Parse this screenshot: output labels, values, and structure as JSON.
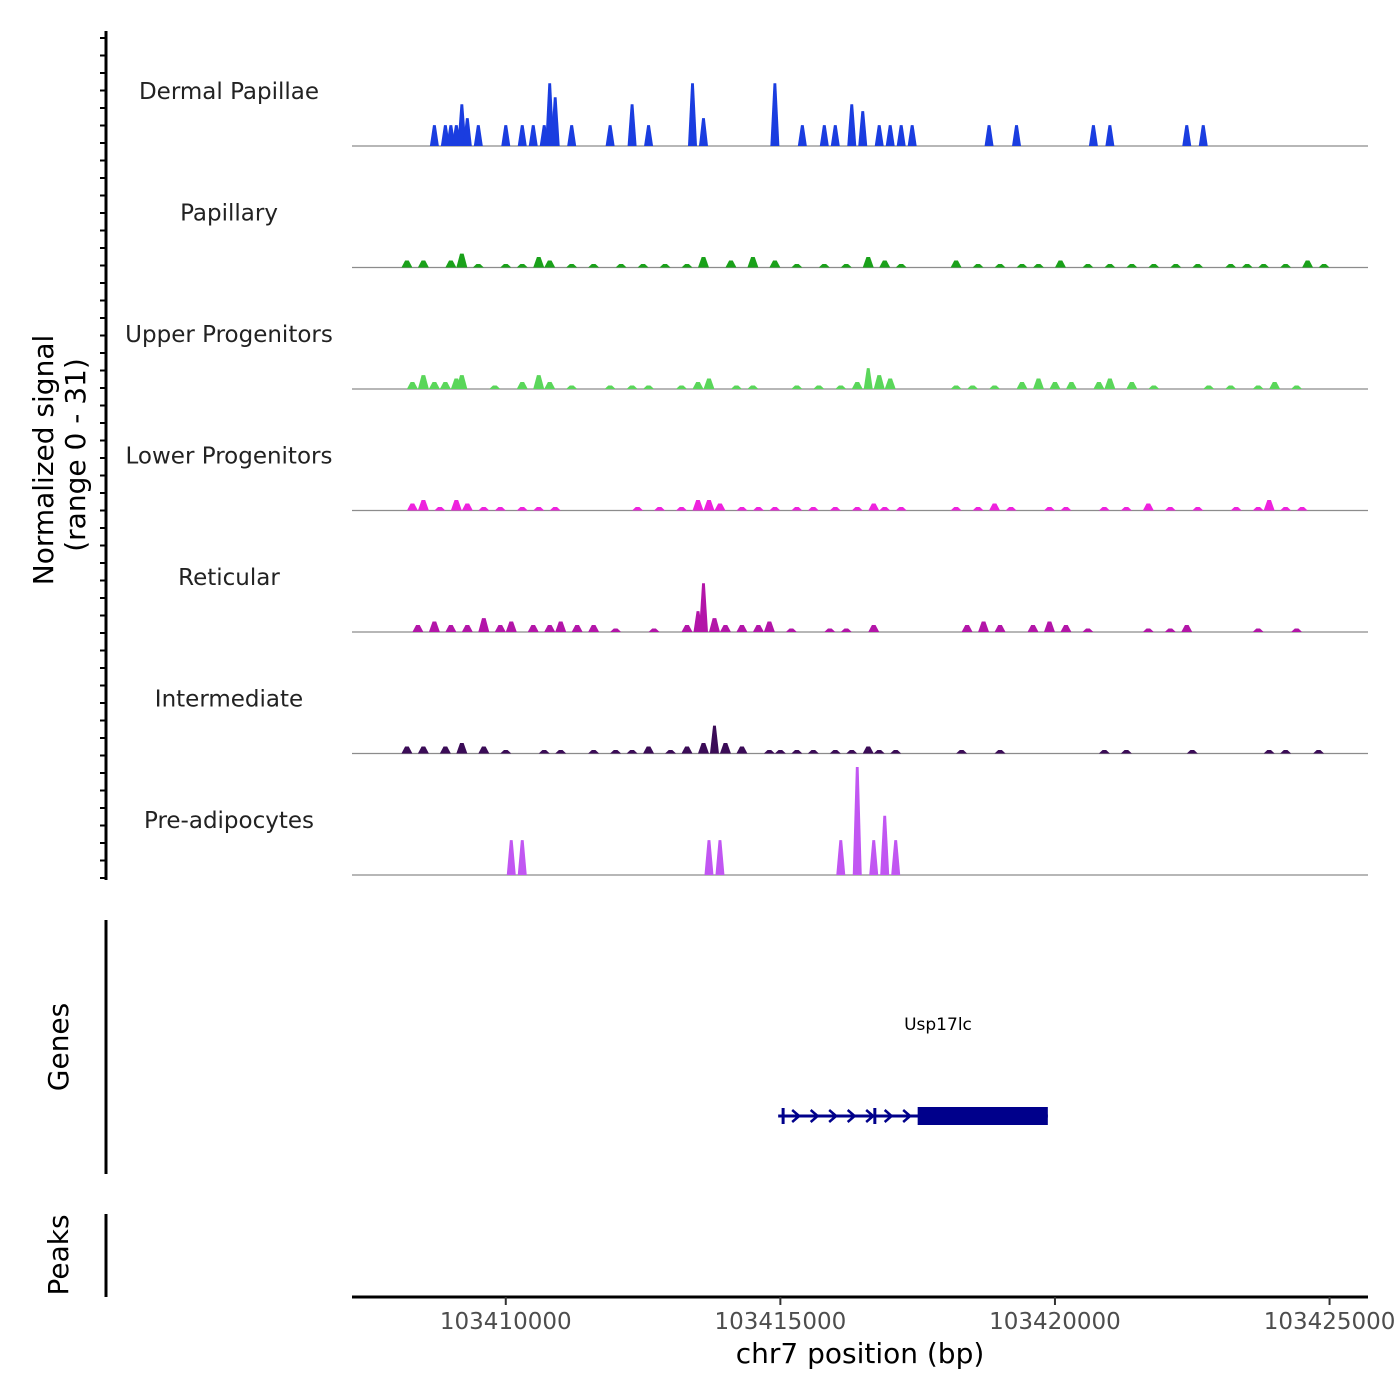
{
  "chart_data": {
    "type": "area",
    "title": "",
    "ylabel_line1": "Normalized signal",
    "ylabel_line2": "(range 0 - 31)",
    "xlabel": "chr7 position (bp)",
    "xlim": [
      103407200,
      103425700
    ],
    "ylim": [
      0,
      31
    ],
    "xticks": [
      {
        "value": 103410000,
        "label": "103410000"
      },
      {
        "value": 103415000,
        "label": "103415000"
      },
      {
        "value": 103420000,
        "label": "103420000"
      },
      {
        "value": 103425000,
        "label": "103425000"
      }
    ],
    "tracks": [
      {
        "name": "Dermal Papillae",
        "color": "#1a3de0",
        "peaks": [
          [
            103408700,
            6
          ],
          [
            103408900,
            6
          ],
          [
            103409000,
            6
          ],
          [
            103409100,
            6
          ],
          [
            103409200,
            12
          ],
          [
            103409300,
            8
          ],
          [
            103409500,
            6
          ],
          [
            103410000,
            6
          ],
          [
            103410300,
            6
          ],
          [
            103410500,
            6
          ],
          [
            103410700,
            6
          ],
          [
            103410800,
            18
          ],
          [
            103410900,
            14
          ],
          [
            103411200,
            6
          ],
          [
            103411900,
            6
          ],
          [
            103412300,
            12
          ],
          [
            103412600,
            6
          ],
          [
            103413400,
            18
          ],
          [
            103413600,
            8
          ],
          [
            103414900,
            18
          ],
          [
            103415400,
            6
          ],
          [
            103415800,
            6
          ],
          [
            103416000,
            6
          ],
          [
            103416300,
            12
          ],
          [
            103416500,
            10
          ],
          [
            103416800,
            6
          ],
          [
            103417000,
            6
          ],
          [
            103417200,
            6
          ],
          [
            103417400,
            6
          ],
          [
            103418800,
            6
          ],
          [
            103419300,
            6
          ],
          [
            103420700,
            6
          ],
          [
            103421000,
            6
          ],
          [
            103422400,
            6
          ],
          [
            103422700,
            6
          ]
        ]
      },
      {
        "name": "Papillary",
        "color": "#1aa11a",
        "peaks": [
          [
            103408200,
            2
          ],
          [
            103408500,
            2
          ],
          [
            103409000,
            2
          ],
          [
            103409200,
            4
          ],
          [
            103409500,
            1
          ],
          [
            103410000,
            1
          ],
          [
            103410300,
            1
          ],
          [
            103410600,
            3
          ],
          [
            103410800,
            2
          ],
          [
            103411200,
            1
          ],
          [
            103411600,
            1
          ],
          [
            103412100,
            1
          ],
          [
            103412500,
            1
          ],
          [
            103412900,
            1
          ],
          [
            103413300,
            1
          ],
          [
            103413600,
            3
          ],
          [
            103414100,
            2
          ],
          [
            103414500,
            3
          ],
          [
            103414900,
            2
          ],
          [
            103415300,
            1
          ],
          [
            103415800,
            1
          ],
          [
            103416200,
            1
          ],
          [
            103416600,
            3
          ],
          [
            103416900,
            2
          ],
          [
            103417200,
            1
          ],
          [
            103418200,
            2
          ],
          [
            103418600,
            1
          ],
          [
            103419000,
            1
          ],
          [
            103419400,
            1
          ],
          [
            103419700,
            1
          ],
          [
            103420100,
            2
          ],
          [
            103420600,
            1
          ],
          [
            103421000,
            1
          ],
          [
            103421400,
            1
          ],
          [
            103421800,
            1
          ],
          [
            103422200,
            1
          ],
          [
            103422600,
            1
          ],
          [
            103423200,
            1
          ],
          [
            103423500,
            1
          ],
          [
            103423800,
            1
          ],
          [
            103424200,
            1
          ],
          [
            103424600,
            2
          ],
          [
            103424900,
            1
          ]
        ]
      },
      {
        "name": "Upper Progenitors",
        "color": "#5ad65a",
        "peaks": [
          [
            103408300,
            2
          ],
          [
            103408500,
            4
          ],
          [
            103408700,
            2
          ],
          [
            103408900,
            2
          ],
          [
            103409100,
            3
          ],
          [
            103409200,
            4
          ],
          [
            103409800,
            1
          ],
          [
            103410300,
            2
          ],
          [
            103410600,
            4
          ],
          [
            103410800,
            2
          ],
          [
            103411200,
            1
          ],
          [
            103411900,
            1
          ],
          [
            103412300,
            1
          ],
          [
            103412600,
            1
          ],
          [
            103413200,
            1
          ],
          [
            103413500,
            2
          ],
          [
            103413700,
            3
          ],
          [
            103414200,
            1
          ],
          [
            103414500,
            1
          ],
          [
            103415300,
            1
          ],
          [
            103415700,
            1
          ],
          [
            103416100,
            1
          ],
          [
            103416400,
            2
          ],
          [
            103416600,
            6
          ],
          [
            103416800,
            4
          ],
          [
            103417000,
            3
          ],
          [
            103418200,
            1
          ],
          [
            103418500,
            1
          ],
          [
            103418900,
            1
          ],
          [
            103419400,
            2
          ],
          [
            103419700,
            3
          ],
          [
            103420000,
            2
          ],
          [
            103420300,
            2
          ],
          [
            103420800,
            2
          ],
          [
            103421000,
            3
          ],
          [
            103421400,
            2
          ],
          [
            103421800,
            1
          ],
          [
            103422800,
            1
          ],
          [
            103423200,
            1
          ],
          [
            103423700,
            1
          ],
          [
            103424000,
            2
          ],
          [
            103424400,
            1
          ]
        ]
      },
      {
        "name": "Lower Progenitors",
        "color": "#ee22dd",
        "peaks": [
          [
            103408300,
            2
          ],
          [
            103408500,
            3
          ],
          [
            103408800,
            1
          ],
          [
            103409100,
            3
          ],
          [
            103409300,
            2
          ],
          [
            103409600,
            1
          ],
          [
            103409900,
            1
          ],
          [
            103410300,
            1
          ],
          [
            103410600,
            1
          ],
          [
            103410900,
            1
          ],
          [
            103412400,
            1
          ],
          [
            103412800,
            1
          ],
          [
            103413200,
            1
          ],
          [
            103413500,
            3
          ],
          [
            103413700,
            3
          ],
          [
            103413900,
            2
          ],
          [
            103414300,
            1
          ],
          [
            103414600,
            1
          ],
          [
            103414900,
            1
          ],
          [
            103415300,
            1
          ],
          [
            103415600,
            1
          ],
          [
            103416000,
            1
          ],
          [
            103416400,
            1
          ],
          [
            103416700,
            2
          ],
          [
            103416900,
            1
          ],
          [
            103417200,
            1
          ],
          [
            103418200,
            1
          ],
          [
            103418600,
            1
          ],
          [
            103418900,
            2
          ],
          [
            103419200,
            1
          ],
          [
            103419900,
            1
          ],
          [
            103420200,
            1
          ],
          [
            103420900,
            1
          ],
          [
            103421300,
            1
          ],
          [
            103421700,
            2
          ],
          [
            103422100,
            1
          ],
          [
            103422600,
            1
          ],
          [
            103423300,
            1
          ],
          [
            103423700,
            1
          ],
          [
            103423900,
            3
          ],
          [
            103424200,
            1
          ],
          [
            103424500,
            1
          ]
        ]
      },
      {
        "name": "Reticular",
        "color": "#b315a8",
        "peaks": [
          [
            103408400,
            2
          ],
          [
            103408700,
            3
          ],
          [
            103409000,
            2
          ],
          [
            103409300,
            2
          ],
          [
            103409600,
            4
          ],
          [
            103409900,
            2
          ],
          [
            103410100,
            3
          ],
          [
            103410500,
            2
          ],
          [
            103410800,
            2
          ],
          [
            103411000,
            3
          ],
          [
            103411300,
            2
          ],
          [
            103411600,
            2
          ],
          [
            103412000,
            1
          ],
          [
            103412700,
            1
          ],
          [
            103413300,
            2
          ],
          [
            103413500,
            6
          ],
          [
            103413600,
            14
          ],
          [
            103413800,
            4
          ],
          [
            103414000,
            2
          ],
          [
            103414300,
            2
          ],
          [
            103414600,
            2
          ],
          [
            103414800,
            3
          ],
          [
            103415200,
            1
          ],
          [
            103415900,
            1
          ],
          [
            103416200,
            1
          ],
          [
            103416700,
            2
          ],
          [
            103418400,
            2
          ],
          [
            103418700,
            3
          ],
          [
            103419000,
            2
          ],
          [
            103419600,
            2
          ],
          [
            103419900,
            3
          ],
          [
            103420200,
            2
          ],
          [
            103420600,
            1
          ],
          [
            103421700,
            1
          ],
          [
            103422100,
            1
          ],
          [
            103422400,
            2
          ],
          [
            103423700,
            1
          ],
          [
            103424400,
            1
          ]
        ]
      },
      {
        "name": "Intermediate",
        "color": "#3b0c57",
        "peaks": [
          [
            103408200,
            2
          ],
          [
            103408500,
            2
          ],
          [
            103408900,
            2
          ],
          [
            103409200,
            3
          ],
          [
            103409600,
            2
          ],
          [
            103410000,
            1
          ],
          [
            103410700,
            1
          ],
          [
            103411000,
            1
          ],
          [
            103411600,
            1
          ],
          [
            103412000,
            1
          ],
          [
            103412300,
            1
          ],
          [
            103412600,
            2
          ],
          [
            103413000,
            1
          ],
          [
            103413300,
            2
          ],
          [
            103413600,
            3
          ],
          [
            103413800,
            8
          ],
          [
            103414000,
            3
          ],
          [
            103414300,
            2
          ],
          [
            103414800,
            1
          ],
          [
            103415000,
            1
          ],
          [
            103415300,
            1
          ],
          [
            103415600,
            1
          ],
          [
            103416000,
            1
          ],
          [
            103416300,
            1
          ],
          [
            103416600,
            2
          ],
          [
            103416800,
            1
          ],
          [
            103417100,
            1
          ],
          [
            103418300,
            1
          ],
          [
            103419000,
            1
          ],
          [
            103420900,
            1
          ],
          [
            103421300,
            1
          ],
          [
            103422500,
            1
          ],
          [
            103423900,
            1
          ],
          [
            103424200,
            1
          ],
          [
            103424800,
            1
          ]
        ]
      },
      {
        "name": "Pre-adipocytes",
        "color": "#c156f2",
        "peaks": [
          [
            103410100,
            10
          ],
          [
            103410300,
            10
          ],
          [
            103413700,
            10
          ],
          [
            103413900,
            10
          ],
          [
            103416100,
            10
          ],
          [
            103416400,
            31
          ],
          [
            103416700,
            10
          ],
          [
            103416900,
            17
          ],
          [
            103417100,
            10
          ]
        ]
      }
    ],
    "genes_label": "Genes",
    "peaks_label": "Peaks",
    "gene": {
      "name": "Usp17lc",
      "strand": "+",
      "start": 103414960,
      "end": 103419870,
      "thick_start": 103417500,
      "thick_end": 103419870,
      "intron_marks": [
        103415050,
        103416720
      ],
      "color": "#00008b"
    }
  }
}
